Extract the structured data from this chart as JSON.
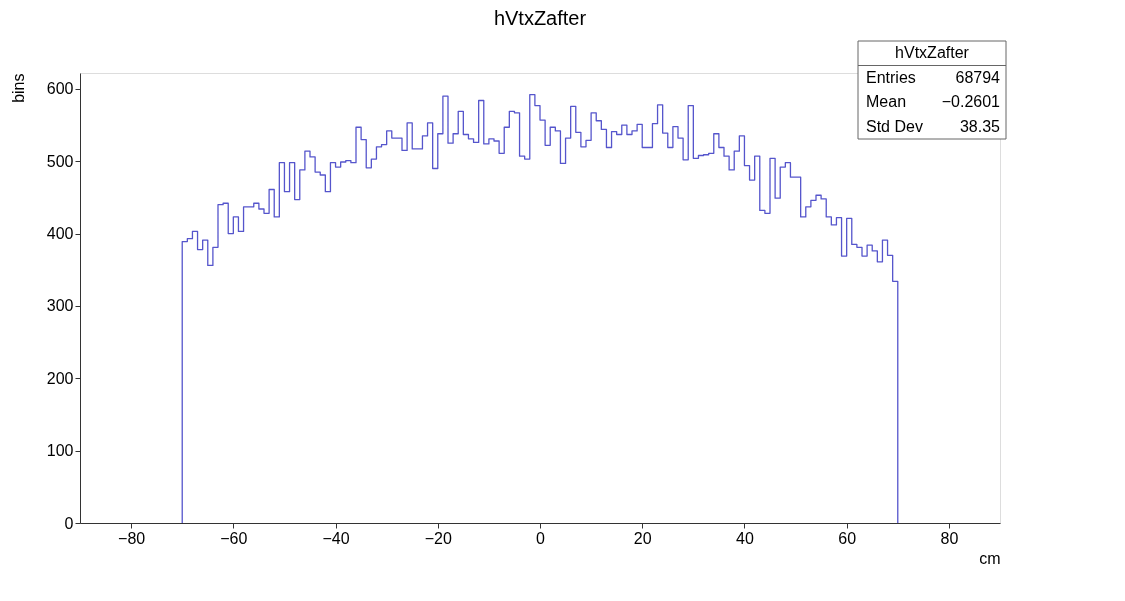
{
  "chart_data": {
    "type": "histogram",
    "title": "hVtxZafter",
    "xlabel": "cm",
    "ylabel": "bins",
    "bins": [
      -70,
      -69,
      -68,
      -67,
      -66,
      -65,
      -64,
      -63,
      -62,
      -61,
      -60,
      -59,
      -58,
      -57,
      -56,
      -55,
      -54,
      -53,
      -52,
      -51,
      -50,
      -49,
      -48,
      -47,
      -46,
      -45,
      -44,
      -43,
      -42,
      -41,
      -40,
      -39,
      -38,
      -37,
      -36,
      -35,
      -34,
      -33,
      -32,
      -31,
      -30,
      -29,
      -28,
      -27,
      -26,
      -25,
      -24,
      -23,
      -22,
      -21,
      -20,
      -19,
      -18,
      -17,
      -16,
      -15,
      -14,
      -13,
      -12,
      -11,
      -10,
      -9,
      -8,
      -7,
      -6,
      -5,
      -4,
      -3,
      -2,
      -1,
      0,
      1,
      2,
      3,
      4,
      5,
      6,
      7,
      8,
      9,
      10,
      11,
      12,
      13,
      14,
      15,
      16,
      17,
      18,
      19,
      20,
      21,
      22,
      23,
      24,
      25,
      26,
      27,
      28,
      29,
      30,
      31,
      32,
      33,
      34,
      35,
      36,
      37,
      38,
      39,
      40,
      41,
      42,
      43,
      44,
      45,
      46,
      47,
      48,
      49,
      50,
      51,
      52,
      53,
      54,
      55,
      56,
      57,
      58,
      59,
      60,
      61,
      62,
      63,
      64,
      65,
      66,
      67,
      68,
      69,
      70
    ],
    "values": [
      389,
      393,
      403,
      378,
      391,
      356,
      381,
      440,
      442,
      400,
      423,
      403,
      437,
      437,
      442,
      434,
      428,
      461,
      423,
      498,
      458,
      498,
      447,
      488,
      514,
      506,
      485,
      481,
      458,
      498,
      492,
      499,
      501,
      498,
      547,
      530,
      491,
      503,
      520,
      523,
      542,
      532,
      532,
      515,
      553,
      517,
      517,
      535,
      553,
      490,
      538,
      590,
      525,
      538,
      569,
      537,
      531,
      526,
      584,
      524,
      531,
      528,
      511,
      547,
      569,
      567,
      507,
      503,
      592,
      577,
      557,
      522,
      547,
      542,
      497,
      532,
      576,
      540,
      520,
      529,
      567,
      556,
      544,
      519,
      541,
      537,
      550,
      537,
      542,
      551,
      519,
      519,
      552,
      578,
      539,
      519,
      548,
      532,
      502,
      577,
      504,
      508,
      509,
      511,
      538,
      519,
      507,
      488,
      514,
      535,
      494,
      474,
      507,
      432,
      428,
      504,
      449,
      492,
      498,
      478,
      478,
      423,
      437,
      446,
      453,
      448,
      423,
      412,
      422,
      369,
      421,
      385,
      381,
      369,
      384,
      376,
      361,
      391,
      370,
      334
    ],
    "color": "#5555cc",
    "xlim": [
      -90,
      90
    ],
    "xticks": [
      -80,
      -60,
      -40,
      -20,
      0,
      20,
      40,
      60,
      80
    ],
    "ylim": [
      0,
      622
    ],
    "yticks": [
      0,
      100,
      200,
      300,
      400,
      500,
      600
    ],
    "grid": false,
    "annotations": [
      "hVtxZafter",
      "Entries",
      "68794",
      "Mean",
      "−0.2601",
      "Std Dev",
      "38.35"
    ]
  }
}
